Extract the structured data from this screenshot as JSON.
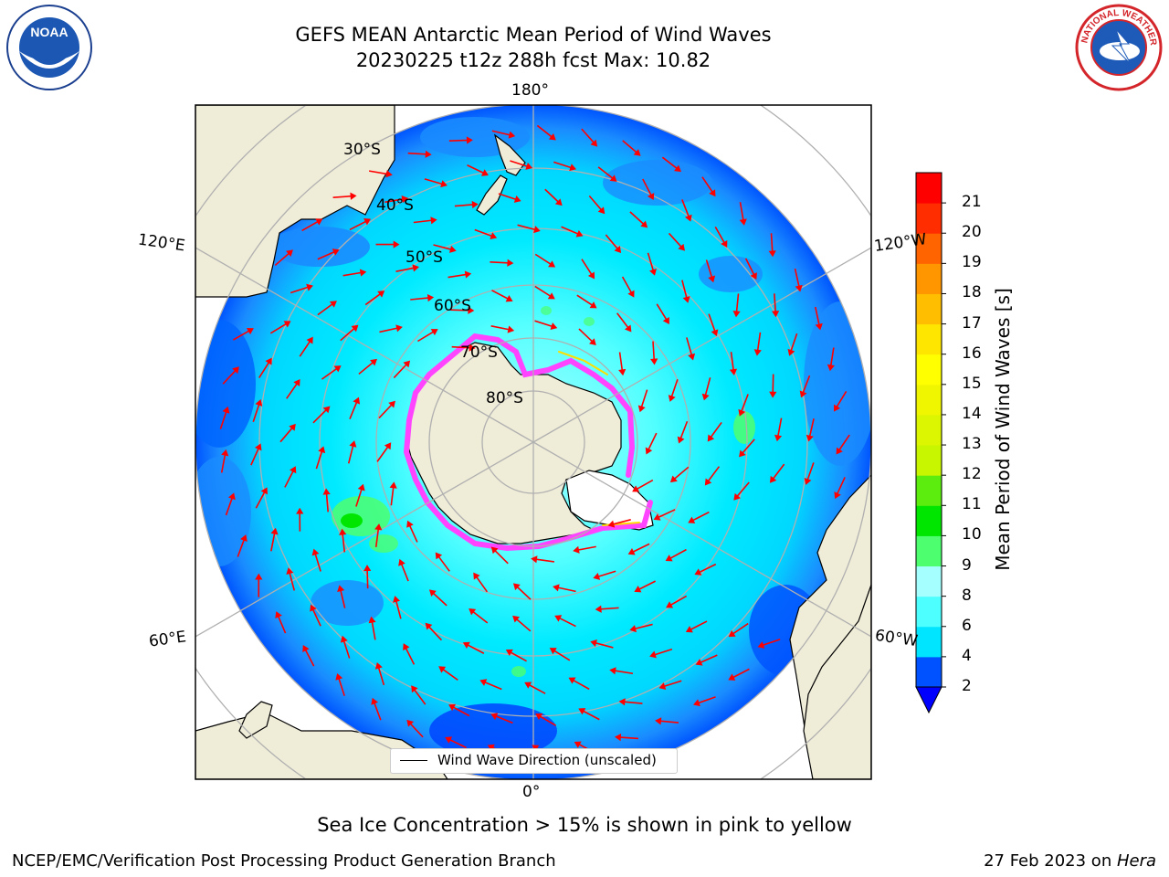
{
  "title_line1": "GEFS MEAN Antarctic Mean Period of Wind Waves",
  "title_line2": "20230225 t12z 288h fcst   Max: 10.82",
  "logos": {
    "left": {
      "icon": "noaa-logo",
      "text": "NOAA"
    },
    "right": {
      "icon": "nws-logo",
      "text": "NATIONAL WEATHER SERVICE"
    }
  },
  "map": {
    "projection": "south-polar-stereographic",
    "lon_labels": {
      "top": "180°",
      "bottom": "0°",
      "upper_left": "120°E",
      "upper_right": "120°W",
      "lower_left": "60°E",
      "lower_right": "60°W"
    },
    "lat_labels": [
      "30°S",
      "40°S",
      "50°S",
      "60°S",
      "70°S",
      "80°S"
    ],
    "legend_label": "Wind Wave Direction (unscaled)",
    "arrow_color": "#ff0000",
    "land_color": "#efecd8",
    "max_value": 10.82
  },
  "colorbar": {
    "title": "Mean Period of Wind Waves [s]",
    "ticks": [
      "2",
      "4",
      "6",
      "8",
      "9",
      "10",
      "11",
      "12",
      "13",
      "14",
      "15",
      "16",
      "17",
      "18",
      "19",
      "20",
      "21"
    ],
    "colors": [
      "#0051ff",
      "#00e5ff",
      "#4dffff",
      "#a6ffff",
      "#4dff6e",
      "#00e600",
      "#5ced0e",
      "#c8f500",
      "#dcf500",
      "#f0f500",
      "#ffff00",
      "#ffe600",
      "#ffbe00",
      "#ff9600",
      "#ff6400",
      "#ff2d00",
      "#ff0000"
    ],
    "under_color": "#0000ff"
  },
  "caption": "Sea Ice Concentration > 15% is shown in pink to yellow",
  "footer_left": "NCEP/EMC/Verification Post Processing Product Generation Branch",
  "footer_right_prefix": "27 Feb 2023 on ",
  "footer_right_host": "Hera"
}
